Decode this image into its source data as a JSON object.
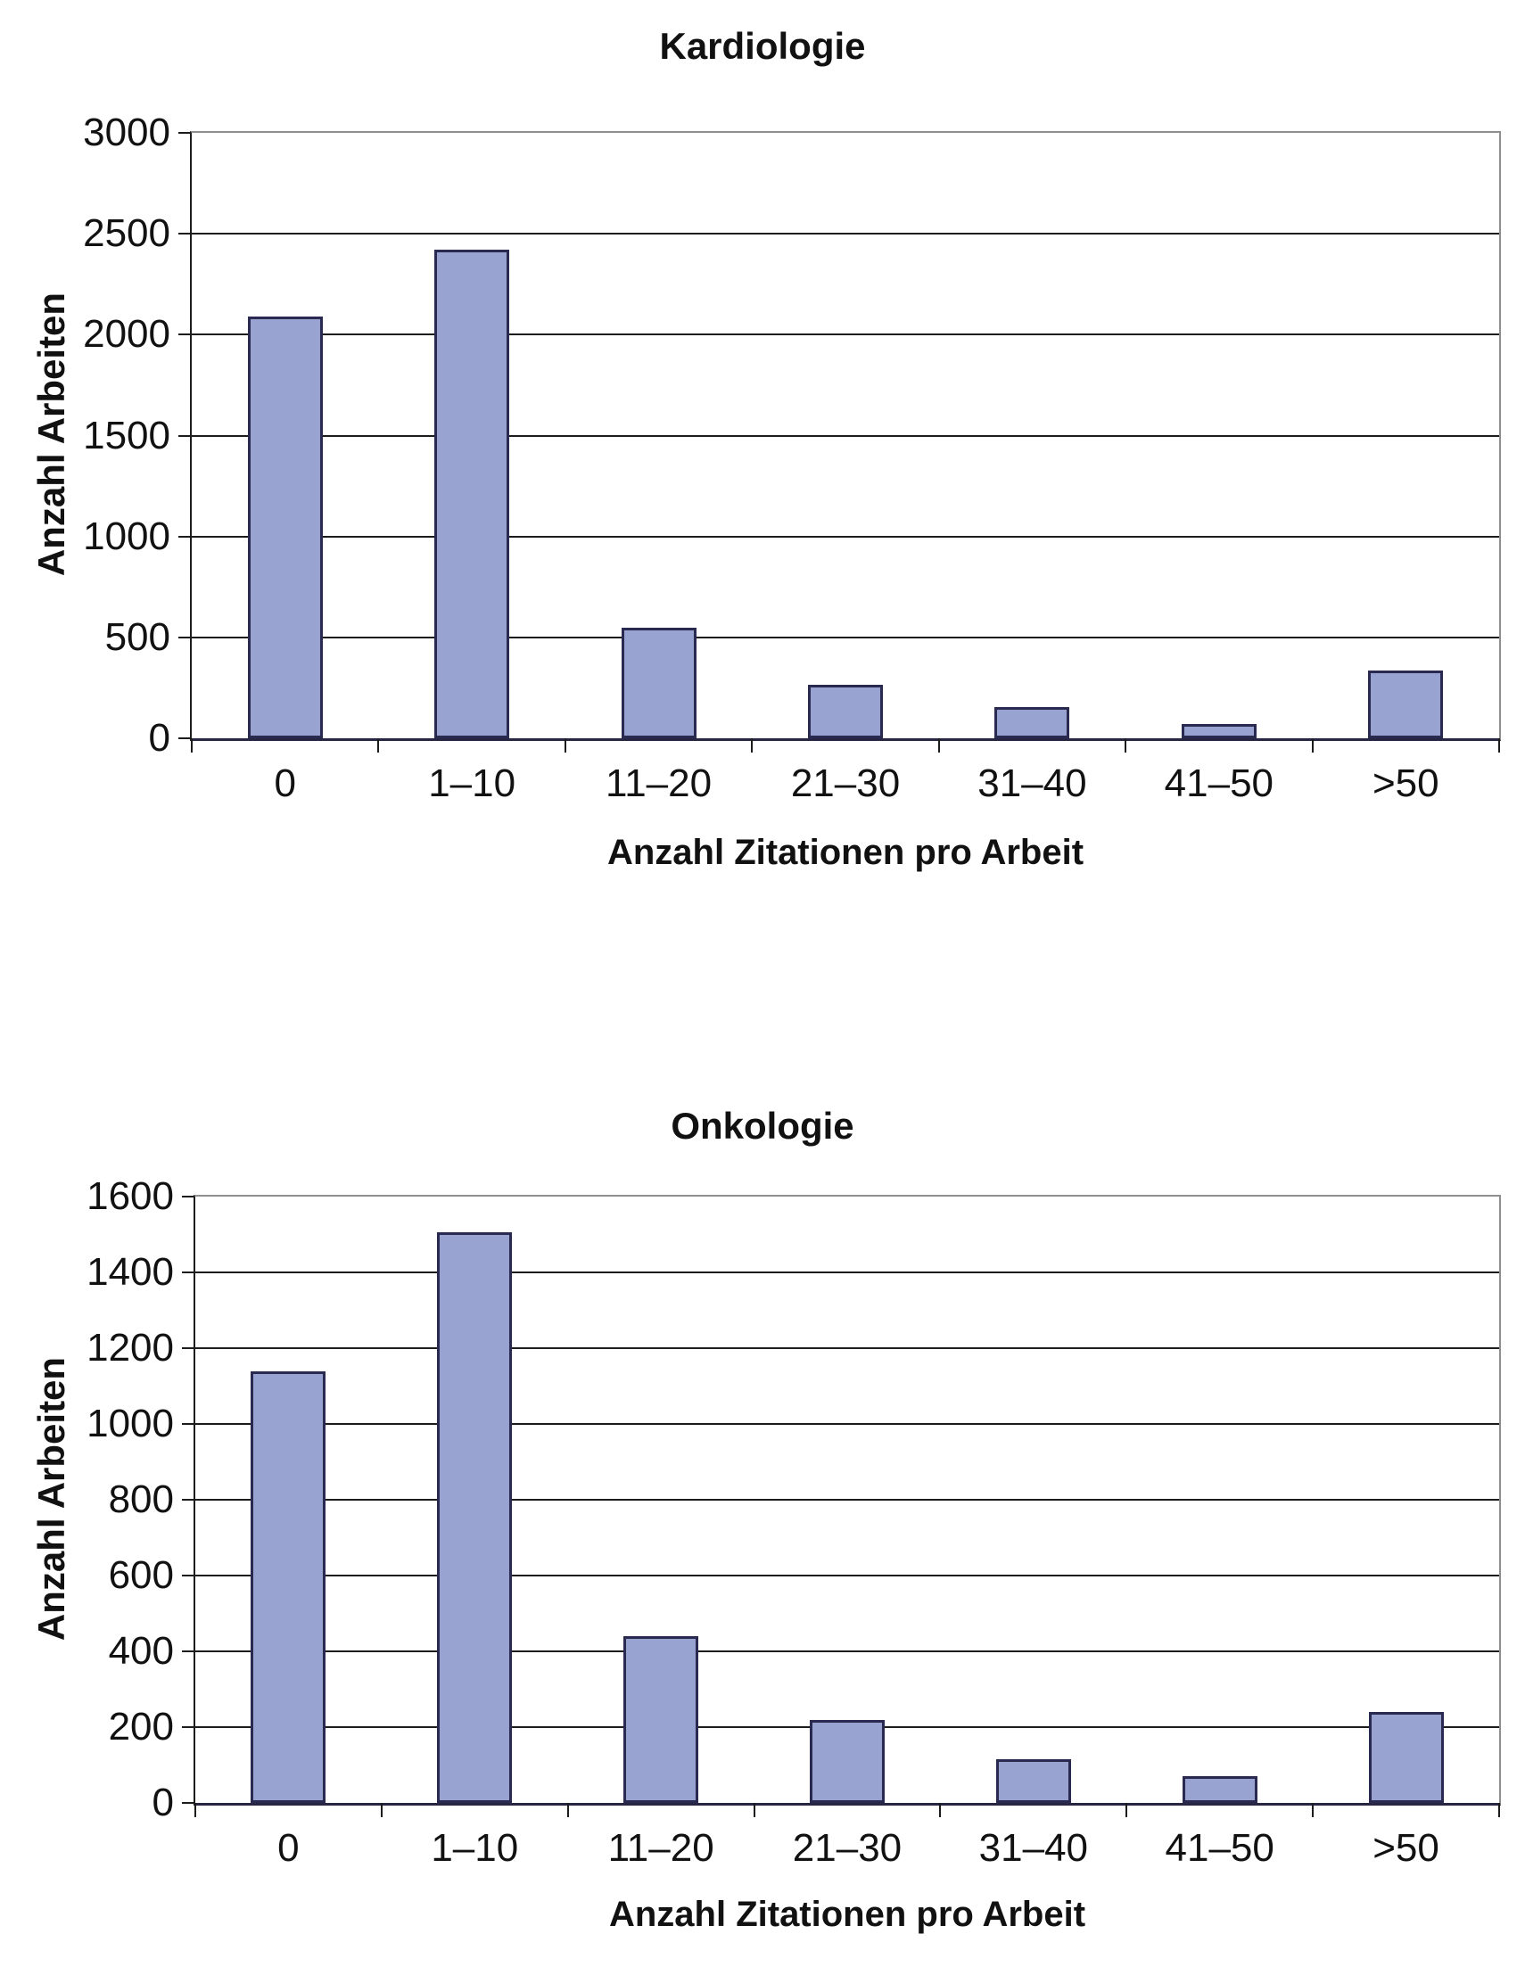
{
  "chart_data": [
    {
      "type": "bar",
      "title": "Kardiologie",
      "xlabel": "Anzahl Zitationen pro Arbeit",
      "ylabel": "Anzahl Arbeiten",
      "categories": [
        "0",
        "1–10",
        "11–20",
        "21–30",
        "31–40",
        "41–50",
        ">50"
      ],
      "values": [
        2090,
        2420,
        550,
        265,
        155,
        70,
        335
      ],
      "ylim": [
        0,
        3000
      ],
      "ytick_step": 500,
      "ytick_labels": [
        "0",
        "500",
        "1000",
        "1500",
        "2000",
        "2500",
        "3000"
      ],
      "grid": true,
      "legend": "none"
    },
    {
      "type": "bar",
      "title": "Onkologie",
      "xlabel": "Anzahl Zitationen pro Arbeit",
      "ylabel": "Anzahl Arbeiten",
      "categories": [
        "0",
        "1–10",
        "11–20",
        "21–30",
        "31–40",
        "41–50",
        ">50"
      ],
      "values": [
        1140,
        1505,
        440,
        220,
        115,
        70,
        240
      ],
      "ylim": [
        0,
        1600
      ],
      "ytick_step": 200,
      "ytick_labels": [
        "0",
        "200",
        "400",
        "600",
        "800",
        "1000",
        "1200",
        "1400",
        "1600"
      ],
      "grid": true,
      "legend": "none"
    }
  ],
  "style": {
    "bar_fill": "#99A3D2",
    "bar_border": "#2A2A50",
    "gridline_color": "#1c1c1c",
    "plot_border_color": "#8F8F8F",
    "text_color": "#111111",
    "background": "#FFFFFF"
  }
}
